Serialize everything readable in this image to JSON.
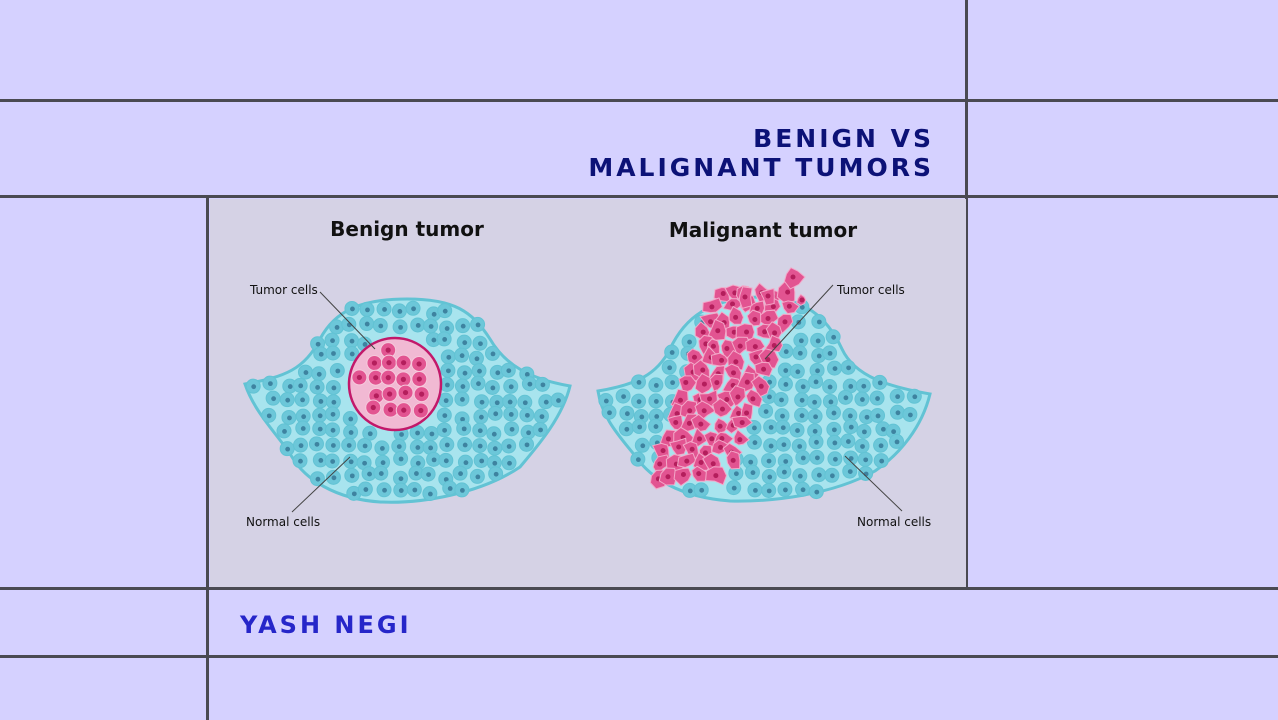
{
  "header": {
    "title_line1": "BENIGN VS",
    "title_line2": "MALIGNANT TUMORS"
  },
  "footer": {
    "author": "YASH NEGI"
  },
  "figure": {
    "benign": {
      "title": "Benign tumor",
      "label_tumor": "Tumor cells",
      "label_normal": "Normal cells"
    },
    "malignant": {
      "title": "Malignant tumor",
      "label_tumor": "Tumor cells",
      "label_normal": "Normal cells"
    }
  },
  "colors": {
    "background": "#d5d1ff",
    "grid_line": "#4a4a52",
    "figure_bg": "#d5d2e5",
    "title": "#0c1277",
    "author": "#2626c9",
    "tissue": "#a8e4ee",
    "tissue_outline": "#62c3d4",
    "normal_cell": "#6cc7d9",
    "normal_nucleus": "#3e83a0",
    "tumor_cell": "#e25491",
    "tumor_nucleus": "#b41e5c",
    "tumor_outline": "#c2186a"
  }
}
